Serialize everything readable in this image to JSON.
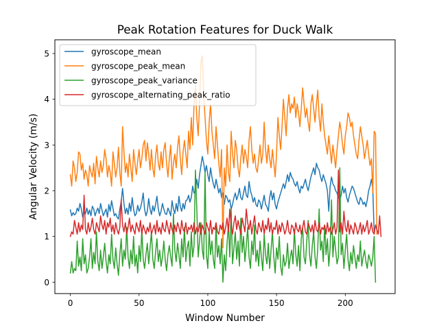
{
  "chart_data": {
    "type": "line",
    "title": "Peak Rotation Features for Duck Walk",
    "xlabel": "Window Number",
    "ylabel": "Angular Velocity (m/s)",
    "xlim": [
      -11.25,
      236.25
    ],
    "ylim": [
      -0.25,
      5.3
    ],
    "x_ticks": [
      0,
      50,
      100,
      150,
      200
    ],
    "y_ticks": [
      0,
      1,
      2,
      3,
      4,
      5
    ],
    "grid": false,
    "legend_position": "top-left",
    "series": [
      {
        "name": "gyroscope_mean",
        "color": "#1f77b4",
        "values": [
          1.58,
          1.45,
          1.52,
          1.47,
          1.5,
          1.62,
          1.55,
          1.72,
          1.6,
          1.42,
          1.53,
          1.5,
          1.62,
          1.48,
          1.58,
          1.45,
          1.66,
          1.6,
          1.45,
          1.55,
          1.62,
          1.5,
          1.72,
          1.58,
          1.45,
          1.53,
          1.6,
          1.42,
          1.7,
          1.55,
          1.78,
          1.62,
          1.45,
          1.5,
          1.42,
          1.38,
          1.6,
          1.76,
          2.05,
          1.72,
          1.5,
          1.62,
          1.48,
          1.73,
          1.55,
          1.85,
          1.6,
          1.45,
          1.5,
          1.68,
          1.55,
          1.62,
          1.75,
          1.95,
          1.6,
          1.45,
          1.55,
          1.83,
          1.6,
          1.48,
          1.67,
          1.55,
          1.7,
          1.88,
          1.6,
          1.45,
          1.55,
          1.72,
          1.6,
          1.5,
          1.48,
          1.62,
          1.55,
          1.45,
          1.78,
          1.6,
          1.5,
          1.72,
          1.55,
          1.88,
          1.65,
          1.55,
          1.72,
          1.6,
          1.78,
          1.8,
          1.9,
          1.75,
          1.85,
          2.1,
          1.95,
          2.0,
          2.25,
          2.05,
          2.35,
          2.55,
          2.75,
          2.6,
          2.4,
          2.55,
          2.35,
          2.2,
          2.5,
          2.3,
          2.15,
          2.05,
          2.25,
          2.1,
          1.95,
          2.05,
          1.85,
          1.95,
          1.7,
          1.9,
          1.85,
          1.75,
          1.8,
          1.6,
          1.7,
          1.85,
          1.95,
          1.8,
          1.9,
          2.05,
          1.85,
          1.8,
          1.95,
          2.1,
          1.9,
          1.85,
          2.2,
          2.0,
          1.9,
          1.75,
          1.85,
          1.7,
          1.65,
          1.8,
          1.75,
          1.6,
          1.75,
          1.9,
          1.7,
          1.65,
          1.55,
          1.85,
          2.0,
          1.8,
          1.95,
          1.7,
          1.6,
          1.75,
          1.85,
          1.95,
          2.05,
          2.15,
          2.05,
          2.2,
          2.35,
          2.2,
          2.4,
          2.3,
          2.25,
          2.15,
          2.1,
          2.2,
          2.05,
          1.95,
          2.1,
          2.05,
          2.15,
          2.25,
          2.1,
          2.0,
          2.15,
          2.3,
          2.4,
          2.5,
          2.35,
          2.6,
          2.5,
          2.45,
          2.3,
          2.2,
          2.35,
          2.25,
          2.15,
          2.0,
          1.55,
          2.1,
          2.3,
          2.15,
          2.1,
          2.0,
          1.95,
          1.85,
          1.8,
          1.9,
          2.1,
          1.95,
          2.05,
          1.85,
          1.75,
          1.9,
          2.0,
          2.1,
          2.05,
          1.95,
          1.85,
          1.75,
          1.7,
          1.85,
          1.8,
          1.7,
          1.75,
          1.65,
          1.8,
          2.0,
          2.1,
          2.25,
          2.05,
          1.1
        ]
      },
      {
        "name": "gyroscope_peak_mean",
        "color": "#ff7f0e",
        "values": [
          2.35,
          2.1,
          2.65,
          2.5,
          2.2,
          2.4,
          2.85,
          2.8,
          2.45,
          2.6,
          2.25,
          2.45,
          2.35,
          2.1,
          2.55,
          2.4,
          2.3,
          2.6,
          2.15,
          2.75,
          2.5,
          2.3,
          2.65,
          2.4,
          2.55,
          2.9,
          2.7,
          2.3,
          2.55,
          2.4,
          2.1,
          2.85,
          2.6,
          2.3,
          2.5,
          2.95,
          2.4,
          2.1,
          3.4,
          2.85,
          2.4,
          2.6,
          2.3,
          2.8,
          2.5,
          2.2,
          2.9,
          2.6,
          2.35,
          2.65,
          2.9,
          2.5,
          2.7,
          3.0,
          3.1,
          2.65,
          3.05,
          2.8,
          2.45,
          2.9,
          2.5,
          2.3,
          2.75,
          3.0,
          2.6,
          2.45,
          2.85,
          2.5,
          2.9,
          3.05,
          2.6,
          2.3,
          2.7,
          3.0,
          2.25,
          2.6,
          2.8,
          2.5,
          2.95,
          3.2,
          2.7,
          2.35,
          2.85,
          3.1,
          2.8,
          2.5,
          3.3,
          2.9,
          3.6,
          3.0,
          3.9,
          4.3,
          3.6,
          3.2,
          3.9,
          4.8,
          4.95,
          4.1,
          3.6,
          3.1,
          2.8,
          3.5,
          3.9,
          3.3,
          3.0,
          2.7,
          3.4,
          3.0,
          2.6,
          2.3,
          2.9,
          0.75,
          2.5,
          2.1,
          3.0,
          2.4,
          2.2,
          3.3,
          2.8,
          2.5,
          3.1,
          2.9,
          2.5,
          2.3,
          2.7,
          3.0,
          2.6,
          2.9,
          2.75,
          2.5,
          3.1,
          3.4,
          2.9,
          2.6,
          2.8,
          2.5,
          2.4,
          2.7,
          3.0,
          2.6,
          2.8,
          3.5,
          2.9,
          2.6,
          3.0,
          2.7,
          2.5,
          2.9,
          2.6,
          2.3,
          2.8,
          3.6,
          3.2,
          2.9,
          3.4,
          4.0,
          3.6,
          3.2,
          3.8,
          4.1,
          3.7,
          3.9,
          3.8,
          4.05,
          3.6,
          3.9,
          3.7,
          3.4,
          3.8,
          4.25,
          3.9,
          3.6,
          3.8,
          3.5,
          3.3,
          3.9,
          4.1,
          3.8,
          3.5,
          3.9,
          4.2,
          3.6,
          3.3,
          3.9,
          3.5,
          3.2,
          3.0,
          2.8,
          3.2,
          2.9,
          2.6,
          3.0,
          2.75,
          2.5,
          2.9,
          3.2,
          3.5,
          3.3,
          3.0,
          2.8,
          3.2,
          3.4,
          3.7,
          3.6,
          3.4,
          3.5,
          3.2,
          3.0,
          2.8,
          2.7,
          3.1,
          3.4,
          3.2,
          3.0,
          2.7,
          2.9,
          3.1,
          2.8,
          2.55,
          2.7,
          1.95,
          3.3,
          3.25,
          1.05
        ]
      },
      {
        "name": "gyroscope_peak_variance",
        "color": "#2ca02c",
        "values": [
          0.2,
          0.45,
          0.2,
          0.3,
          0.25,
          0.9,
          0.35,
          0.55,
          0.25,
          0.95,
          0.4,
          0.6,
          0.2,
          0.3,
          0.55,
          0.95,
          0.3,
          0.65,
          0.4,
          1.1,
          0.45,
          0.25,
          0.7,
          0.3,
          0.55,
          0.85,
          0.45,
          0.2,
          0.6,
          0.4,
          1.05,
          0.5,
          0.3,
          0.75,
          0.4,
          0.15,
          0.6,
          0.95,
          0.35,
          0.7,
          0.5,
          1.2,
          0.55,
          0.3,
          0.7,
          0.4,
          1.0,
          0.35,
          0.6,
          0.2,
          0.8,
          0.45,
          1.15,
          0.5,
          0.3,
          0.6,
          0.85,
          0.4,
          0.75,
          1.1,
          0.5,
          0.3,
          0.65,
          0.95,
          0.45,
          0.7,
          0.35,
          0.55,
          0.9,
          0.5,
          0.25,
          0.6,
          0.8,
          0.55,
          0.35,
          1.5,
          0.7,
          0.45,
          0.85,
          0.6,
          0.3,
          0.95,
          0.55,
          1.2,
          0.45,
          0.75,
          0.9,
          0.35,
          1.1,
          0.55,
          0.8,
          2.45,
          1.6,
          0.55,
          0.9,
          1.3,
          0.7,
          0.5,
          2.4,
          0.6,
          0.3,
          1.1,
          0.6,
          0.9,
          0.5,
          0.3,
          1.25,
          0.55,
          0.8,
          0.4,
          0.95,
          0.0,
          0.6,
          0.25,
          0.85,
          1.25,
          0.55,
          1.6,
          0.4,
          0.75,
          1.1,
          0.5,
          0.9,
          0.35,
          1.4,
          0.65,
          1.0,
          0.45,
          0.8,
          1.2,
          0.55,
          0.3,
          0.9,
          0.6,
          1.25,
          0.45,
          0.7,
          0.35,
          0.9,
          0.55,
          0.25,
          1.05,
          0.6,
          0.4,
          0.85,
          0.3,
          0.7,
          1.1,
          0.55,
          0.2,
          0.75,
          0.5,
          1.0,
          0.35,
          0.15,
          0.6,
          0.35,
          0.45,
          0.85,
          0.3,
          0.55,
          0.7,
          0.4,
          1.15,
          0.6,
          0.35,
          0.8,
          0.25,
          0.95,
          1.2,
          0.55,
          0.4,
          0.9,
          1.35,
          0.6,
          0.35,
          0.8,
          1.1,
          0.55,
          0.3,
          0.75,
          1.6,
          0.7,
          0.9,
          0.45,
          1.25,
          0.6,
          0.95,
          0.35,
          0.75,
          1.8,
          0.55,
          1.0,
          0.7,
          0.4,
          0.55,
          2.5,
          0.6,
          0.85,
          0.3,
          0.7,
          1.05,
          0.5,
          0.25,
          0.65,
          0.4,
          0.8,
          0.55,
          0.3,
          0.6,
          0.45,
          0.9,
          0.35,
          0.55,
          0.7,
          0.45,
          0.3,
          0.6,
          0.5,
          0.35,
          0.55,
          1.0,
          0.0
        ]
      },
      {
        "name": "gyroscope_alternating_peak_ratio",
        "color": "#d62728",
        "values": [
          1.0,
          1.1,
          1.05,
          1.35,
          1.2,
          1.05,
          1.3,
          1.1,
          1.25,
          1.15,
          1.9,
          1.15,
          1.05,
          1.3,
          1.1,
          1.2,
          1.4,
          1.15,
          1.05,
          1.3,
          1.2,
          1.1,
          1.45,
          1.25,
          1.15,
          1.35,
          1.05,
          1.3,
          1.2,
          1.4,
          1.1,
          1.25,
          1.05,
          1.3,
          1.15,
          1.05,
          1.2,
          1.8,
          1.25,
          1.1,
          1.3,
          1.05,
          1.2,
          1.4,
          1.1,
          1.25,
          1.15,
          1.05,
          1.3,
          1.2,
          1.1,
          1.35,
          1.05,
          1.25,
          1.15,
          1.05,
          1.2,
          1.1,
          1.3,
          1.05,
          1.15,
          1.25,
          1.05,
          1.35,
          1.1,
          1.2,
          1.05,
          1.3,
          1.15,
          1.1,
          1.35,
          1.2,
          1.05,
          1.3,
          1.15,
          1.05,
          1.25,
          1.1,
          1.3,
          1.2,
          1.05,
          1.35,
          1.15,
          1.1,
          1.3,
          1.05,
          1.2,
          1.15,
          1.25,
          1.1,
          1.3,
          1.05,
          1.2,
          1.1,
          1.3,
          1.05,
          1.25,
          1.15,
          1.05,
          1.3,
          1.2,
          1.1,
          1.35,
          1.05,
          1.2,
          1.15,
          1.3,
          1.1,
          1.05,
          1.25,
          1.15,
          1.3,
          1.05,
          1.2,
          1.4,
          1.1,
          1.6,
          1.25,
          1.05,
          1.3,
          1.45,
          1.15,
          1.35,
          1.2,
          1.05,
          1.4,
          1.25,
          1.1,
          1.6,
          1.3,
          1.15,
          1.35,
          1.05,
          1.25,
          1.45,
          1.15,
          1.05,
          1.3,
          1.2,
          1.1,
          1.35,
          1.05,
          1.25,
          1.15,
          1.4,
          1.1,
          1.3,
          1.05,
          1.2,
          1.15,
          1.35,
          1.05,
          1.25,
          1.1,
          1.3,
          1.2,
          1.05,
          1.15,
          1.35,
          1.1,
          1.05,
          1.25,
          1.2,
          1.05,
          1.3,
          1.15,
          1.1,
          1.25,
          1.05,
          1.2,
          1.35,
          1.1,
          1.05,
          1.3,
          1.2,
          1.1,
          1.25,
          1.05,
          1.35,
          1.15,
          1.1,
          1.3,
          1.05,
          1.2,
          1.15,
          1.25,
          1.05,
          1.3,
          1.1,
          1.2,
          1.05,
          1.15,
          1.3,
          1.05,
          1.2,
          2.45,
          1.1,
          1.3,
          1.05,
          1.55,
          1.2,
          1.1,
          1.35,
          1.05,
          1.25,
          1.15,
          1.05,
          1.3,
          1.2,
          1.05,
          1.15,
          1.3,
          1.05,
          1.25,
          1.1,
          1.2,
          1.35,
          1.05,
          1.15,
          1.3,
          1.1,
          1.05,
          1.25,
          1.15,
          1.05,
          1.45,
          1.0
        ]
      }
    ]
  }
}
